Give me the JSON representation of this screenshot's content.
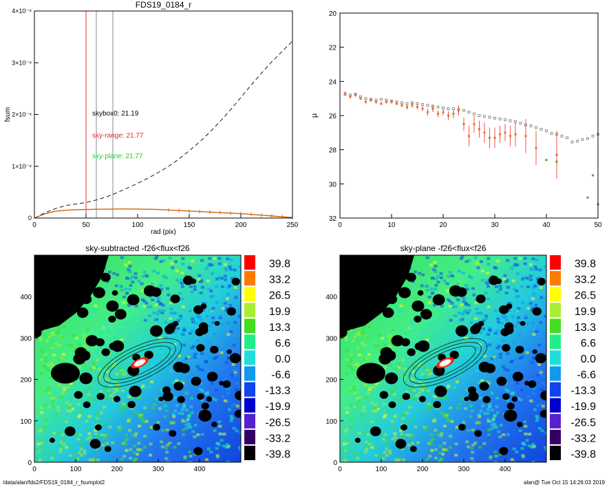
{
  "chart_data": [
    {
      "type": "line",
      "title": "FDS19_0184_r",
      "xlabel": "rad (pix)",
      "ylabel": "fsum",
      "xlim": [
        0,
        250
      ],
      "ylim": [
        0,
        4e-08
      ],
      "x_ticks": [
        "0",
        "50",
        "100",
        "150",
        "200",
        "250"
      ],
      "y_ticks": [
        "0",
        "1×10⁻⁸",
        "2×10⁻⁸",
        "3×10⁻⁸",
        "4×10⁻⁸"
      ],
      "vlines": [
        {
          "x": 50,
          "color": "#ee3333"
        },
        {
          "x": 60,
          "color": "#888888"
        },
        {
          "x": 76,
          "color": "#888888"
        }
      ],
      "annotations": [
        {
          "text": "skybox0: 21.19",
          "color": "#000000"
        },
        {
          "text": "sky-range: 21.77",
          "color": "#ee2222"
        },
        {
          "text": "sky-plane: 21.77",
          "color": "#22cc22"
        }
      ],
      "series": [
        {
          "style": "dashed",
          "color": "#000000",
          "x": [
            0,
            10,
            20,
            30,
            40,
            50,
            60,
            70,
            80,
            90,
            100,
            110,
            120,
            130,
            140,
            150,
            160,
            170,
            180,
            190,
            200,
            210,
            220,
            230,
            240,
            250
          ],
          "y": [
            0,
            1e-09,
            1.8e-09,
            2.4e-09,
            2.7e-09,
            3e-09,
            3.5e-09,
            4.1e-09,
            4.9e-09,
            5.8e-09,
            6.7e-09,
            7.7e-09,
            8.8e-09,
            1e-08,
            1.14e-08,
            1.3e-08,
            1.47e-08,
            1.66e-08,
            1.87e-08,
            2.09e-08,
            2.33e-08,
            2.57e-08,
            2.8e-08,
            3.02e-08,
            3.22e-08,
            3.42e-08
          ]
        },
        {
          "style": "solid",
          "color": "#cc6600",
          "x": [
            0,
            10,
            20,
            30,
            40,
            50,
            60,
            70,
            80,
            90,
            100,
            110,
            120,
            130,
            140,
            150,
            160,
            170,
            180,
            190,
            200,
            210,
            220,
            230,
            240,
            250
          ],
          "y": [
            0,
            8e-10,
            1.3e-09,
            1.5e-09,
            1.6e-09,
            1.65e-09,
            1.7e-09,
            1.72e-09,
            1.75e-09,
            1.75e-09,
            1.73e-09,
            1.7e-09,
            1.65e-09,
            1.55e-09,
            1.45e-09,
            1.35e-09,
            1.25e-09,
            1.15e-09,
            1.05e-09,
            9.5e-10,
            8.5e-10,
            7e-10,
            5.5e-10,
            4e-10,
            2.5e-10,
            1e-10
          ]
        }
      ]
    },
    {
      "type": "scatter",
      "title": "",
      "xlabel": "",
      "ylabel": "μ",
      "xlim": [
        0,
        50
      ],
      "ylim": [
        32,
        20
      ],
      "x_ticks": [
        "0",
        "10",
        "20",
        "30",
        "40",
        "50"
      ],
      "y_ticks": [
        "20",
        "22",
        "24",
        "26",
        "28",
        "30",
        "32"
      ],
      "series": [
        {
          "style": "gray-squares",
          "color": "#777777",
          "x": [
            1,
            2,
            3,
            4,
            5,
            6,
            7,
            8,
            9,
            10,
            11,
            12,
            13,
            14,
            15,
            16,
            17,
            18,
            19,
            20,
            21,
            22,
            23,
            24,
            25,
            26,
            27,
            28,
            29,
            30,
            31,
            32,
            33,
            34,
            35,
            36,
            37,
            38,
            39,
            40,
            41,
            42,
            43,
            44,
            45,
            46,
            47,
            48,
            49,
            50
          ],
          "y": [
            24.75,
            24.8,
            24.75,
            24.9,
            25.0,
            25.05,
            25.1,
            25.05,
            25.1,
            25.15,
            25.2,
            25.25,
            25.3,
            25.25,
            25.3,
            25.35,
            25.4,
            25.45,
            25.5,
            25.55,
            25.6,
            25.6,
            25.65,
            25.7,
            25.8,
            25.9,
            26.0,
            26.05,
            26.1,
            26.15,
            26.2,
            26.25,
            26.3,
            26.35,
            26.45,
            26.55,
            26.6,
            26.7,
            26.8,
            26.9,
            27.05,
            27.1,
            27.2,
            27.3,
            27.55,
            27.5,
            27.4,
            27.35,
            27.2,
            27.1
          ]
        },
        {
          "style": "orange-points-errorbars",
          "color": "#dd7733",
          "errcolor": "#ee5544",
          "x": [
            1,
            2,
            3,
            4,
            5,
            6,
            7,
            8,
            9,
            10,
            11,
            12,
            13,
            14,
            15,
            16,
            17,
            18,
            19,
            20,
            21,
            22,
            23,
            24,
            25,
            26,
            27,
            28,
            29,
            30,
            31,
            32,
            33,
            34,
            36,
            38,
            42
          ],
          "y": [
            24.7,
            24.9,
            24.8,
            25.0,
            25.2,
            25.1,
            25.2,
            25.3,
            25.2,
            25.2,
            25.3,
            25.4,
            25.5,
            25.4,
            25.5,
            25.6,
            25.8,
            25.6,
            25.9,
            25.8,
            26.0,
            25.9,
            25.7,
            26.5,
            27.2,
            26.5,
            26.8,
            27.0,
            27.3,
            27.3,
            27.1,
            27.0,
            27.2,
            27.1,
            27.2,
            27.9,
            28.3
          ],
          "err": [
            0.1,
            0.1,
            0.1,
            0.1,
            0.1,
            0.1,
            0.1,
            0.1,
            0.1,
            0.1,
            0.1,
            0.1,
            0.15,
            0.15,
            0.15,
            0.15,
            0.2,
            0.2,
            0.2,
            0.2,
            0.25,
            0.25,
            0.3,
            0.4,
            0.6,
            0.5,
            0.5,
            0.6,
            0.6,
            0.6,
            0.5,
            0.5,
            0.6,
            0.7,
            1.0,
            1.0,
            1.4
          ]
        },
        {
          "style": "green-points",
          "color": "#669933",
          "x": [
            40,
            42,
            48,
            49,
            50
          ],
          "y": [
            28.6,
            28.7,
            30.8,
            29.5,
            31.2
          ]
        }
      ]
    },
    {
      "type": "heatmap",
      "title": "sky-subtracted -f26<flux<f26",
      "xlim": [
        0,
        500
      ],
      "ylim": [
        0,
        500
      ],
      "x_ticks": [
        "0",
        "100",
        "200",
        "300",
        "400"
      ],
      "y_ticks": [
        "0",
        "100",
        "200",
        "300",
        "400"
      ],
      "colorbar": {
        "labels": [
          "39.8",
          "33.2",
          "26.5",
          "19.9",
          "13.3",
          "6.6",
          "0.0",
          "-6.6",
          "-13.3",
          "-19.9",
          "-26.5",
          "-33.2",
          "-39.8"
        ],
        "colors": [
          "#ff0000",
          "#ff7a00",
          "#ffff00",
          "#aaee33",
          "#44dd22",
          "#22ee88",
          "#22dddd",
          "#1199ee",
          "#1144ee",
          "#0000cc",
          "#5522cc",
          "#330066",
          "#000000"
        ]
      }
    },
    {
      "type": "heatmap",
      "title": "sky-plane -f26<flux<f26",
      "xlim": [
        0,
        500
      ],
      "ylim": [
        0,
        500
      ],
      "x_ticks": [
        "0",
        "100",
        "200",
        "300",
        "400"
      ],
      "y_ticks": [
        "0",
        "100",
        "200",
        "300",
        "400"
      ],
      "colorbar": {
        "labels": [
          "39.8",
          "33.2",
          "26.5",
          "19.9",
          "13.3",
          "6.6",
          "0.0",
          "-6.6",
          "-13.3",
          "-19.9",
          "-26.5",
          "-33.2",
          "-39.8"
        ],
        "colors": [
          "#ff0000",
          "#ff7a00",
          "#ffff00",
          "#aaee33",
          "#44dd22",
          "#22ee88",
          "#22dddd",
          "#1199ee",
          "#1144ee",
          "#0000cc",
          "#5522cc",
          "#330066",
          "#000000"
        ]
      }
    }
  ],
  "footer": {
    "left": "/data/alan/fds2/FDS19_0184_r_fsumplot2",
    "right": "alan@  Tue Oct 15 14:26:03 2019"
  }
}
